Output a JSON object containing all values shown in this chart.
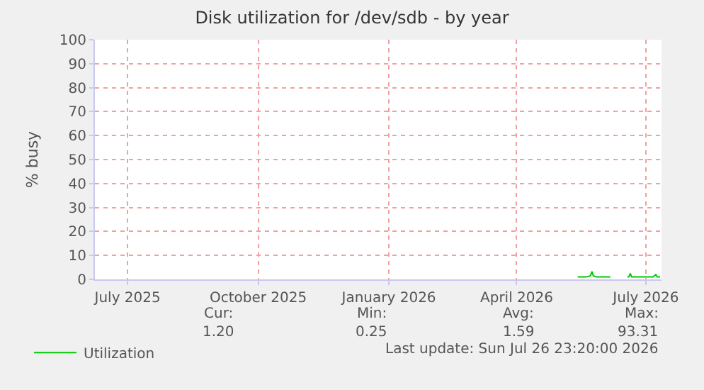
{
  "chart_data": {
    "type": "line",
    "title": "Disk utilization for /dev/sdb - by year",
    "ylabel": "% busy",
    "x": [
      "2026-05-14",
      "2026-05-20",
      "2026-05-23",
      "2026-05-24",
      "2026-05-25",
      "2026-05-27",
      "2026-06-06",
      "2026-06-07",
      "2026-06-18",
      "2026-06-19",
      "2026-06-20",
      "2026-06-21",
      "2026-06-22",
      "2026-07-06",
      "2026-07-08",
      "2026-07-09",
      "2026-07-11"
    ],
    "series": [
      {
        "name": "Utilization",
        "color": "#00cc00",
        "values": [
          1,
          1,
          1.5,
          3.3,
          1.5,
          1,
          1,
          null,
          1,
          1,
          2.5,
          1,
          1,
          1,
          2,
          1,
          1
        ]
      }
    ],
    "xlim": [
      "2025-06-08",
      "2026-07-12"
    ],
    "xticks": [
      {
        "value": "2025-07-01",
        "label": "July 2025"
      },
      {
        "value": "2025-10-01",
        "label": "October 2025"
      },
      {
        "value": "2026-01-01",
        "label": "January 2026"
      },
      {
        "value": "2026-04-01",
        "label": "April 2026"
      },
      {
        "value": "2026-07-01",
        "label": "July 2026"
      }
    ],
    "ylim": [
      0,
      100
    ],
    "yticks": [
      0,
      10,
      20,
      30,
      40,
      50,
      60,
      70,
      80,
      90,
      100
    ],
    "grid": true,
    "legend": "bottom left",
    "marker": "none",
    "line_style": "solid",
    "annotations": [
      "Cur:",
      "Min:",
      "Avg:",
      "Max:",
      "1.20",
      "0.25",
      "1.59",
      "93.31",
      "Last update: Sun Jul 26 23:20:00 2026"
    ]
  }
}
